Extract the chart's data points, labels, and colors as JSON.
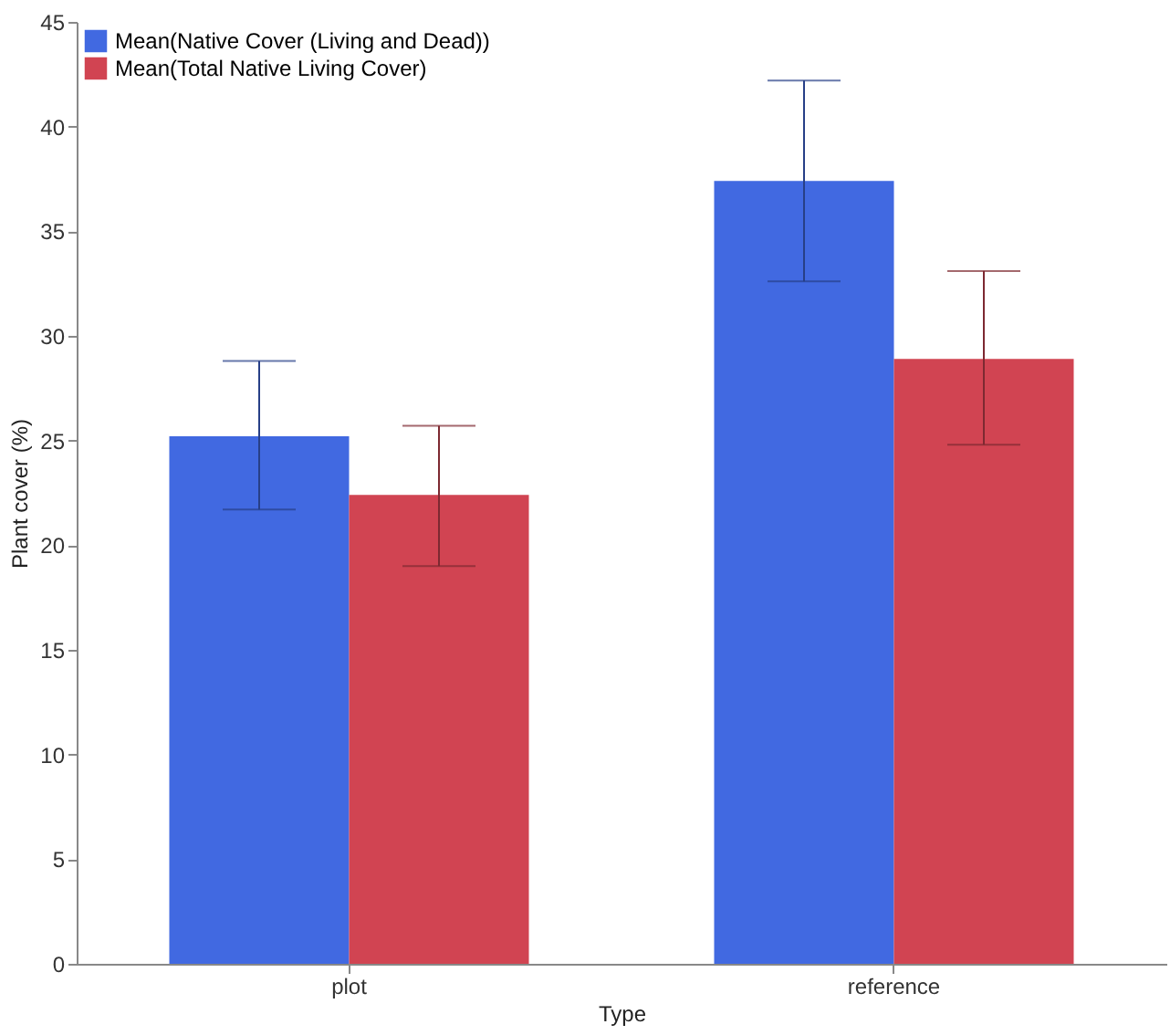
{
  "chart_data": {
    "type": "bar",
    "xlabel": "Type",
    "ylabel": "Plant cover (%)",
    "categories": [
      "plot",
      "reference"
    ],
    "series": [
      {
        "name": "Mean(Native Cover (Living and Dead))",
        "color": "#4169e1",
        "values": [
          25.2,
          37.4
        ],
        "errors": [
          [
            21.7,
            28.8
          ],
          [
            32.6,
            42.2
          ]
        ]
      },
      {
        "name": "Mean(Total Native Living Cover)",
        "color": "#d14452",
        "values": [
          22.4,
          28.9
        ],
        "errors": [
          [
            19.0,
            25.7
          ],
          [
            24.8,
            33.1
          ]
        ]
      }
    ],
    "ylim": [
      0,
      45
    ],
    "yticks": [
      0,
      5,
      10,
      15,
      20,
      25,
      30,
      35,
      40,
      45
    ],
    "grid": false,
    "legend": "top left"
  }
}
